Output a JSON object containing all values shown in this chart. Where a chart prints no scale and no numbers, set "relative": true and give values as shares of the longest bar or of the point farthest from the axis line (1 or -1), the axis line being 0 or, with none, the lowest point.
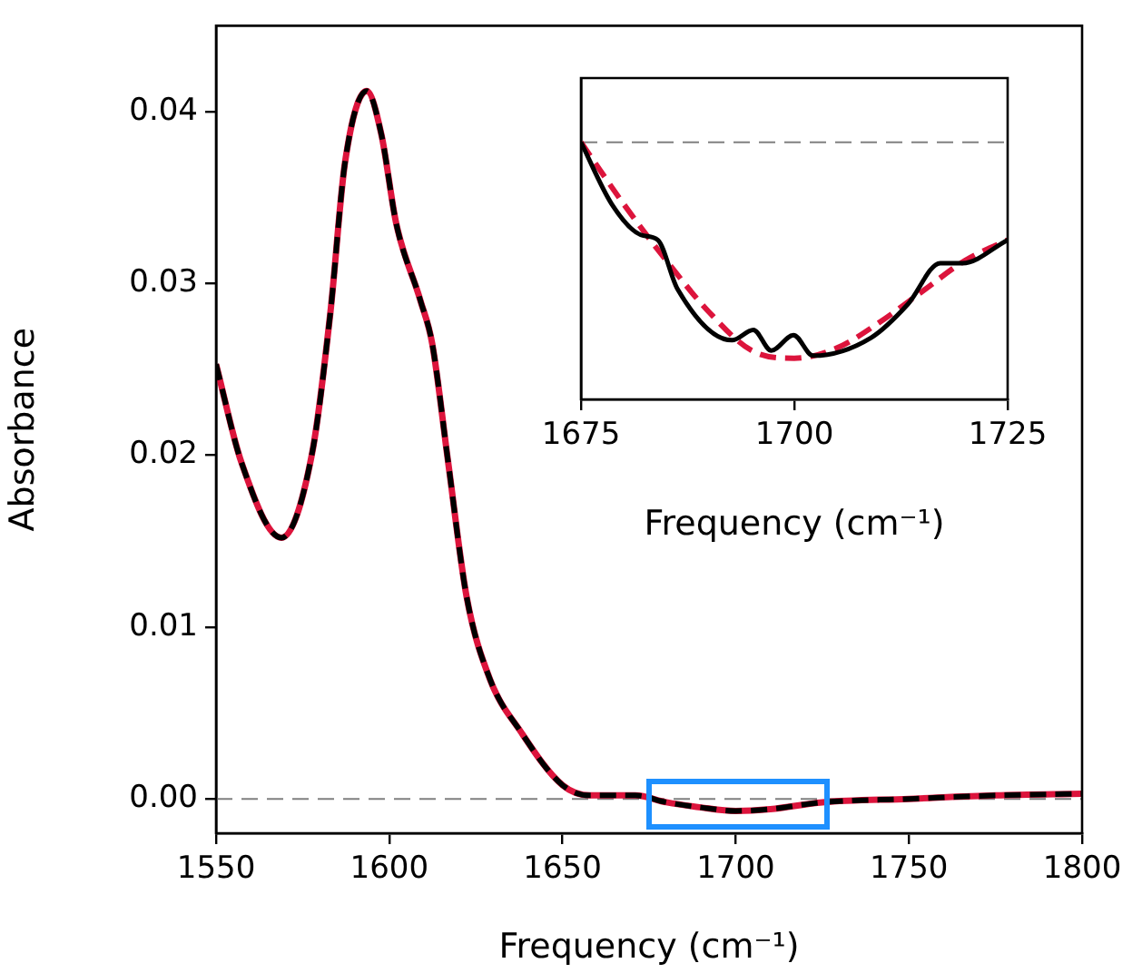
{
  "chart_data": [
    {
      "type": "line",
      "xlabel": "Frequency (cm⁻¹)",
      "ylabel": "Absorbance",
      "xlim": [
        1550,
        1800
      ],
      "ylim": [
        -0.002,
        0.045
      ],
      "xticks": [
        1550,
        1600,
        1650,
        1700,
        1750,
        1800
      ],
      "yticks": [
        {
          "value": 0,
          "label": "0.00"
        },
        {
          "value": 0.01,
          "label": "0.01"
        },
        {
          "value": 0.02,
          "label": "0.02"
        },
        {
          "value": 0.03,
          "label": "0.03"
        },
        {
          "value": 0.04,
          "label": "0.04"
        }
      ],
      "grid": false,
      "legend": false,
      "marker": "none",
      "x": [
        1550,
        1557.3,
        1568.9,
        1577.8,
        1583,
        1587.2,
        1593.5,
        1597.7,
        1602,
        1609,
        1612.4,
        1617,
        1622.3,
        1629,
        1638,
        1650,
        1658,
        1671,
        1680,
        1690,
        1700,
        1710,
        1725,
        1750,
        1775,
        1800
      ],
      "series": [
        {
          "color": "#dc143c",
          "line_style": "solid",
          "values": [
            0.0253,
            0.0196,
            0.0152,
            0.0202,
            0.0283,
            0.037,
            0.0412,
            0.0387,
            0.0335,
            0.029,
            0.0265,
            0.0196,
            0.0118,
            0.007,
            0.0039,
            0.0008,
            0.0002,
            0.0002,
            -0.0002,
            -0.0005,
            -0.0007,
            -0.0006,
            -0.0002,
            0,
            0.0002,
            0.0003
          ]
        },
        {
          "color": "#000000",
          "line_style": "dashed",
          "values": [
            0.0253,
            0.0196,
            0.0152,
            0.0202,
            0.0283,
            0.037,
            0.0412,
            0.0387,
            0.0335,
            0.029,
            0.0265,
            0.0196,
            0.0118,
            0.007,
            0.0039,
            0.0008,
            0.0002,
            0.0002,
            -0.0002,
            -0.0005,
            -0.0007,
            -0.0006,
            -0.0002,
            0,
            0.0002,
            0.0003
          ]
        }
      ],
      "ref_lines": [
        {
          "axis": "y",
          "value": 0,
          "color": "#808080",
          "line_style": "dashed"
        }
      ]
    },
    {
      "type": "line",
      "xlabel": "Frequency (cm⁻¹)",
      "xlim": [
        1675,
        1725
      ],
      "xticks": [
        1675,
        1700,
        1725
      ],
      "relative": true,
      "grid": false,
      "legend": false,
      "marker": "none",
      "series": [
        {
          "color": "#dc143c",
          "line_style": "dashed",
          "x": [
            1675,
            1680,
            1685,
            1690,
            1695,
            1700,
            1705,
            1710,
            1715,
            1720,
            1725
          ],
          "values": [
            1,
            0.76,
            0.54,
            0.34,
            0.19,
            0.16,
            0.2,
            0.3,
            0.42,
            0.54,
            0.62
          ]
        },
        {
          "color": "#000000",
          "line_style": "solid",
          "x": [
            1675,
            1678.6,
            1682,
            1684,
            1686.3,
            1692.7,
            1695.2,
            1697.3,
            1699.9,
            1702.2,
            1709,
            1713.3,
            1717.1,
            1719.7,
            1725
          ],
          "values": [
            1,
            0.76,
            0.64,
            0.62,
            0.43,
            0.23,
            0.27,
            0.19,
            0.25,
            0.17,
            0.24,
            0.37,
            0.53,
            0.53,
            0.62
          ]
        }
      ],
      "ref_lines": [
        {
          "axis": "y",
          "value": 1,
          "color": "#808080",
          "line_style": "dashed"
        }
      ]
    }
  ]
}
